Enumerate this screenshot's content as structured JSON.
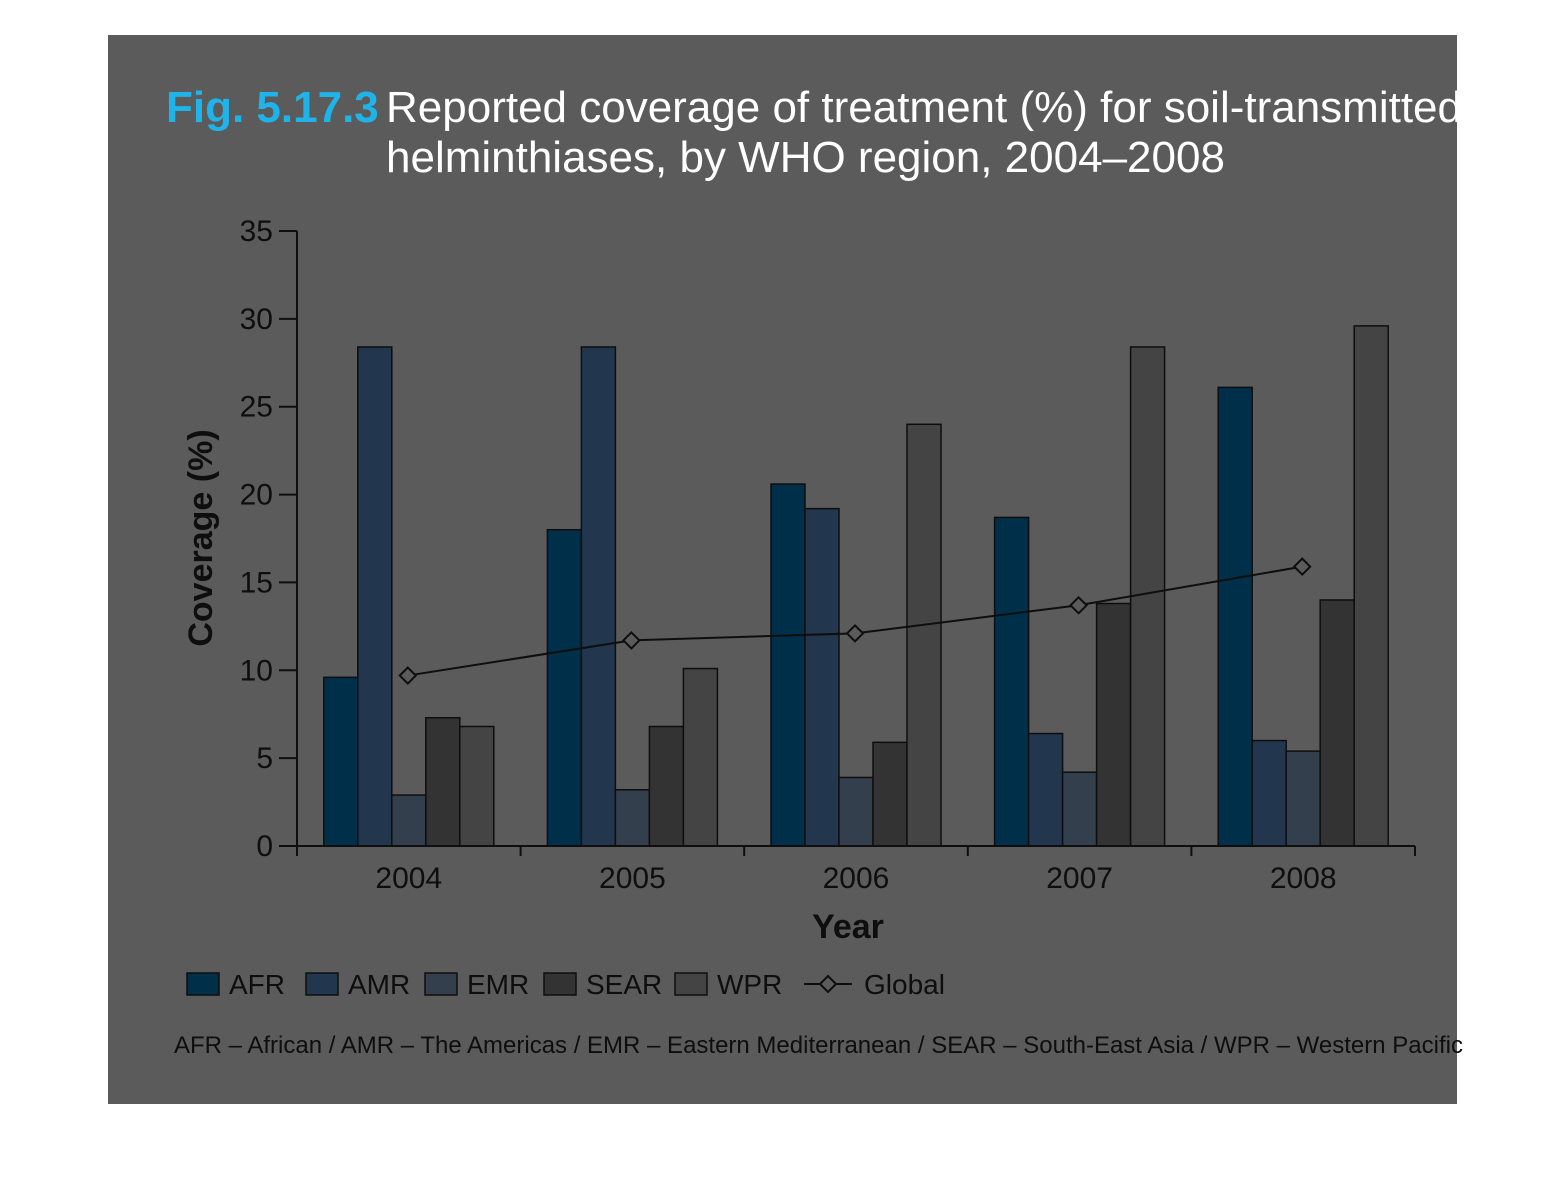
{
  "figure": {
    "label": "Fig. 5.17.3",
    "title_line1": "Reported coverage of treatment (%) for soil-transmitted",
    "title_line2": "helminthiases, by WHO region, 2004–2008",
    "footnote": "AFR – African / AMR – The Americas / EMR – Eastern Mediterranean / SEAR – South-East Asia / WPR – Western Pacific"
  },
  "chart_data": {
    "type": "bar",
    "title": "Reported coverage of treatment (%) for soil-transmitted helminthiases, by WHO region, 2004–2008",
    "xlabel": "Year",
    "ylabel": "Coverage (%)",
    "ylim": [
      0,
      35
    ],
    "yticks": [
      0,
      5,
      10,
      15,
      20,
      25,
      30,
      35
    ],
    "categories": [
      "2004",
      "2005",
      "2006",
      "2007",
      "2008"
    ],
    "series": [
      {
        "name": "AFR",
        "values": [
          9.6,
          18.0,
          20.6,
          18.7,
          26.1
        ],
        "color": "#003049"
      },
      {
        "name": "AMR",
        "values": [
          28.4,
          28.4,
          19.2,
          6.4,
          6.0
        ],
        "color": "#22364e"
      },
      {
        "name": "EMR",
        "values": [
          2.9,
          3.2,
          3.9,
          4.2,
          5.4
        ],
        "color": "#343f4e"
      },
      {
        "name": "SEAR",
        "values": [
          7.3,
          6.8,
          5.9,
          13.8,
          14.0
        ],
        "color": "#333333"
      },
      {
        "name": "WPR",
        "values": [
          6.8,
          10.1,
          24.0,
          28.4,
          29.6
        ],
        "color": "#444444"
      }
    ],
    "line_series": {
      "name": "Global",
      "values": [
        9.7,
        11.7,
        12.1,
        13.7,
        15.9
      ],
      "marker": "diamond"
    },
    "legend": "bottom",
    "grid": false
  }
}
